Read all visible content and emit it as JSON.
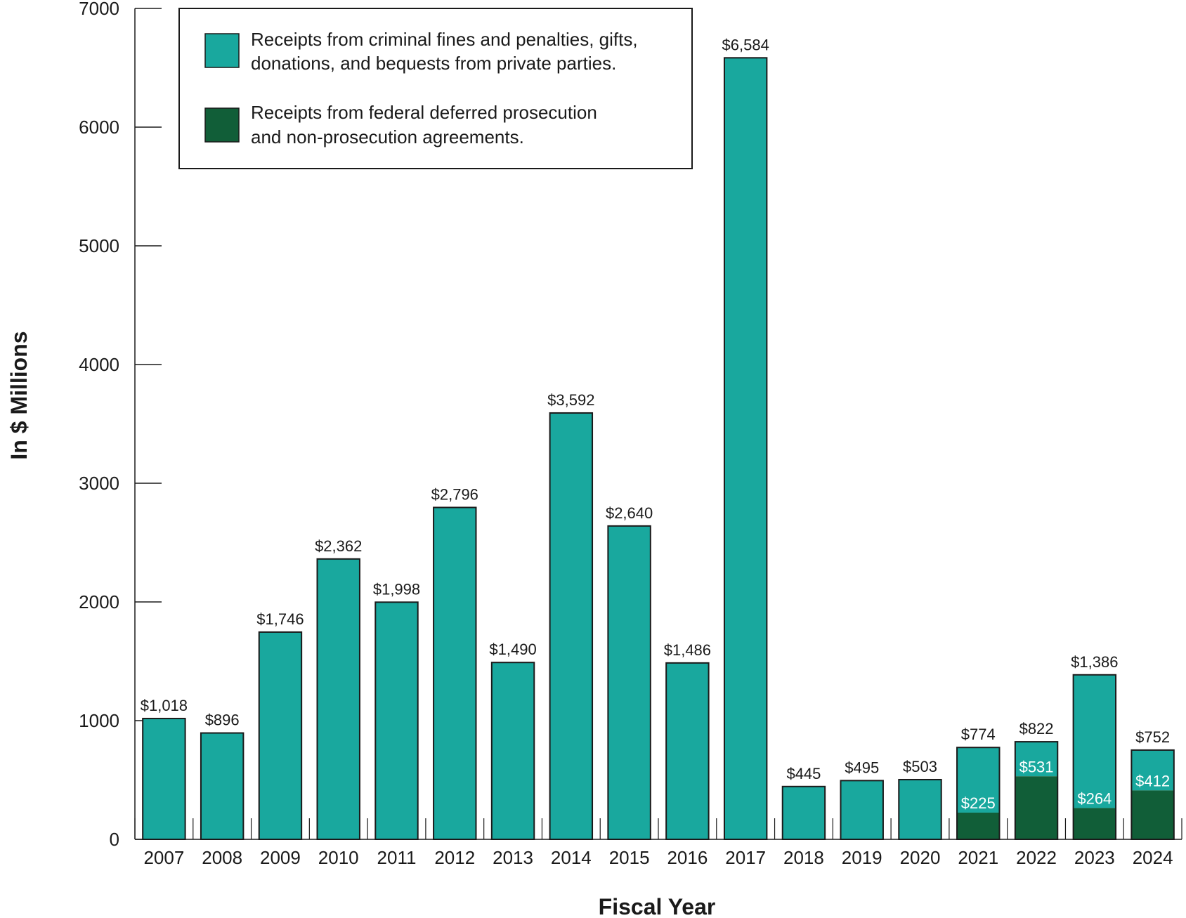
{
  "chart_data": {
    "type": "bar",
    "stacked": true,
    "xlabel": "Fiscal Year",
    "ylabel": "In $ Millions",
    "ylim": [
      0,
      7000
    ],
    "yticks": [
      0,
      1000,
      2000,
      3000,
      4000,
      5000,
      6000,
      7000
    ],
    "grid": false,
    "legend_position": "top-left",
    "categories": [
      "2007",
      "2008",
      "2009",
      "2010",
      "2011",
      "2012",
      "2013",
      "2014",
      "2015",
      "2016",
      "2017",
      "2018",
      "2019",
      "2020",
      "2021",
      "2022",
      "2023",
      "2024"
    ],
    "totals": [
      1018,
      896,
      1746,
      2362,
      1998,
      2796,
      1490,
      3592,
      2640,
      1486,
      6584,
      445,
      495,
      503,
      774,
      822,
      1386,
      752
    ],
    "total_labels": [
      "$1,018",
      "$896",
      "$1,746",
      "$2,362",
      "$1,998",
      "$2,796",
      "$1,490",
      "$3,592",
      "$2,640",
      "$1,486",
      "$6,584",
      "$445",
      "$495",
      "$503",
      "$774",
      "$822",
      "$1,386",
      "$752"
    ],
    "series": [
      {
        "name_lines": [
          "Receipts from criminal fines and penalties, gifts,",
          "donations, and bequests from private parties."
        ],
        "color": "#19a89e",
        "values": [
          1018,
          896,
          1746,
          2362,
          1998,
          2796,
          1490,
          3592,
          2640,
          1486,
          6584,
          445,
          495,
          503,
          549,
          291,
          1122,
          340
        ]
      },
      {
        "name_lines": [
          "Receipts from federal deferred prosecution",
          "and non-prosecution agreements."
        ],
        "color": "#115e38",
        "values": [
          0,
          0,
          0,
          0,
          0,
          0,
          0,
          0,
          0,
          0,
          0,
          0,
          0,
          0,
          225,
          531,
          264,
          412
        ],
        "labels": [
          "",
          "",
          "",
          "",
          "",
          "",
          "",
          "",
          "",
          "",
          "",
          "",
          "",
          "",
          "$225",
          "$531",
          "$264",
          "$412"
        ]
      }
    ]
  }
}
